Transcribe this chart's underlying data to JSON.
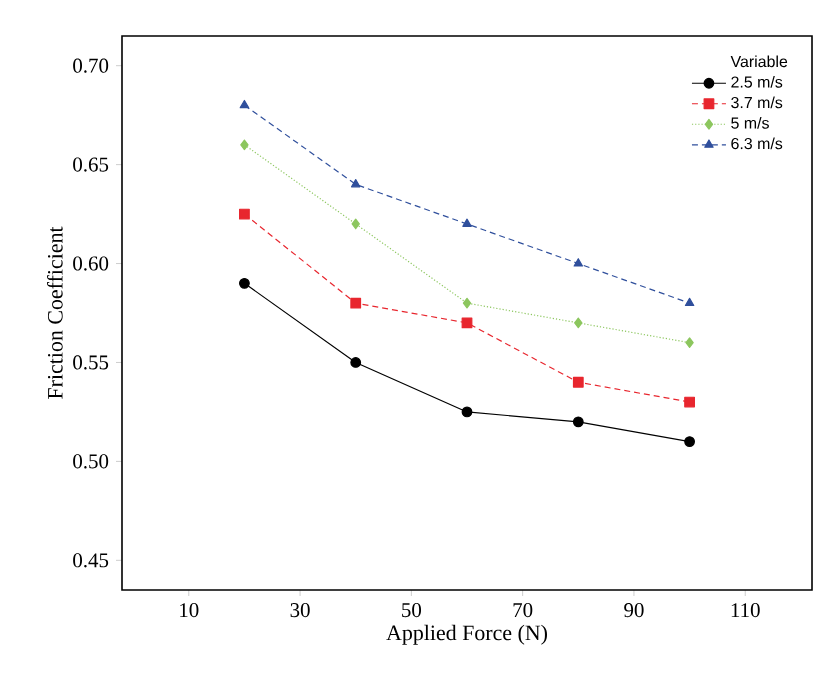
{
  "chart_data": {
    "type": "line",
    "xlabel": "Applied Force (N)",
    "ylabel": "Friction Coefficient",
    "legend_title": "Variable",
    "x": [
      20,
      40,
      60,
      80,
      100
    ],
    "xlim": [
      -2,
      122
    ],
    "xticks": [
      10,
      30,
      50,
      70,
      90,
      110
    ],
    "ylim": [
      0.435,
      0.715
    ],
    "yticks": [
      {
        "value": 0.45,
        "label": "0.45"
      },
      {
        "value": 0.5,
        "label": "0.50"
      },
      {
        "value": 0.55,
        "label": "0.55"
      },
      {
        "value": 0.6,
        "label": "0.60"
      },
      {
        "value": 0.65,
        "label": "0.65"
      },
      {
        "value": 0.7,
        "label": "0.70"
      }
    ],
    "grid": false,
    "legend": "top right",
    "series": [
      {
        "name": "2.5 m/s",
        "color": "#000000",
        "marker": "circle",
        "line_style": "solid",
        "values": [
          0.59,
          0.55,
          0.525,
          0.52,
          0.51
        ]
      },
      {
        "name": "3.7 m/s",
        "color": "#e8262e",
        "marker": "square",
        "line_style": "dashed",
        "values": [
          0.625,
          0.58,
          0.57,
          0.54,
          0.53
        ]
      },
      {
        "name": "5 m/s",
        "color": "#8cc65e",
        "marker": "diamond",
        "line_style": "dotted",
        "values": [
          0.66,
          0.62,
          0.58,
          0.57,
          0.56
        ]
      },
      {
        "name": "6.3 m/s",
        "color": "#2f4f9c",
        "marker": "triangle",
        "line_style": "dashed",
        "values": [
          0.68,
          0.64,
          0.62,
          0.6,
          0.58
        ]
      }
    ]
  }
}
